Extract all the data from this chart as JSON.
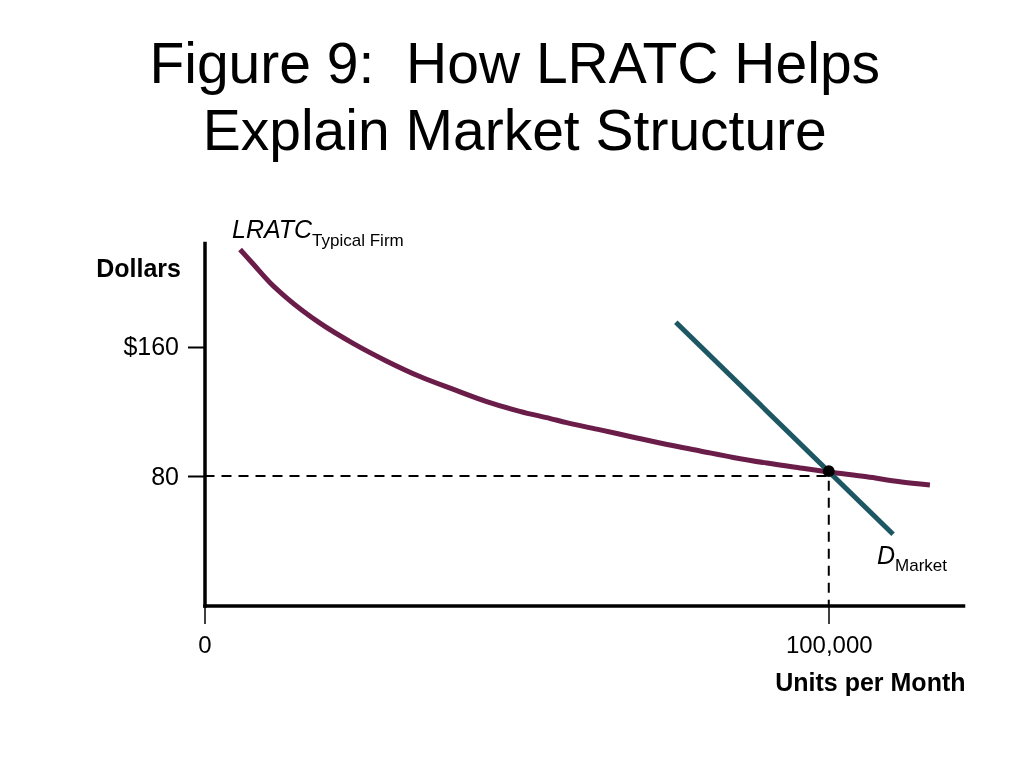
{
  "chart_data": {
    "type": "line",
    "title": "Figure 9:  How LRATC Helps\nExplain Market Structure",
    "xlabel": "Units per Month",
    "ylabel": "Dollars",
    "xlim": [
      0,
      121500
    ],
    "ylim": [
      0,
      224
    ],
    "xticks": [
      0,
      {
        "value": 100000,
        "label": "100,000"
      }
    ],
    "yticks": [
      80,
      {
        "value": 160,
        "label": "$160"
      }
    ],
    "series": [
      {
        "color": "#000000",
        "line_style": "dashed",
        "x": [
          0,
          100000,
          100000
        ],
        "values": [
          80,
          80,
          0
        ]
      },
      {
        "name": "LRATC$_{Typical Firm}$",
        "color": "#6b1d4a",
        "x": [
          5700,
          7800,
          10500,
          13200,
          18500,
          23800,
          29200,
          34500,
          39900,
          45200,
          50500,
          55400,
          58000,
          63400,
          68700,
          74100,
          79400,
          84700,
          90100,
          95400,
          100000,
          106100,
          111400,
          116200
        ],
        "values": [
          220,
          211,
          199.5,
          190,
          174.5,
          162,
          151,
          141.5,
          133.5,
          126,
          120,
          115.5,
          113,
          108.5,
          104,
          99.5,
          95.5,
          91.5,
          88,
          85,
          82.5,
          79.5,
          76.5,
          74.5
        ]
      },
      {
        "name": "D$_{Market}$",
        "color": "#1d5763",
        "x": [
          75500,
          110300
        ],
        "values": [
          175,
          44
        ]
      },
      {
        "type": "scatter",
        "color": "#000000",
        "marker": "circle",
        "x": [
          100000
        ],
        "values": [
          83
        ]
      }
    ]
  }
}
